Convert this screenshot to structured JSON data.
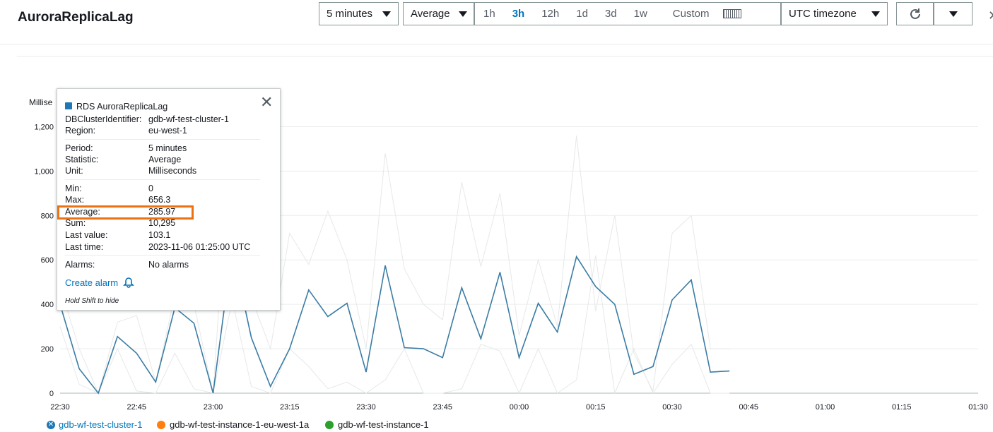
{
  "header": {
    "title": "AuroraReplicaLag",
    "period": "5 minutes",
    "statistic": "Average",
    "ranges": [
      "1h",
      "3h",
      "12h",
      "1d",
      "3d",
      "1w"
    ],
    "active_range": "3h",
    "custom_label": "Custom",
    "timezone": "UTC timezone"
  },
  "tooltip": {
    "metric": "RDS AuroraReplicaLag",
    "rows": [
      {
        "label": "DBClusterIdentifier:",
        "value": "gdb-wf-test-cluster-1"
      },
      {
        "label": "Region:",
        "value": "eu-west-1"
      },
      {
        "label": "Period:",
        "value": "5 minutes"
      },
      {
        "label": "Statistic:",
        "value": "Average"
      },
      {
        "label": "Unit:",
        "value": "Milliseconds"
      },
      {
        "label": "Min:",
        "value": "0"
      },
      {
        "label": "Max:",
        "value": "656.3"
      },
      {
        "label": "Average:",
        "value": "285.97"
      },
      {
        "label": "Sum:",
        "value": "10,295"
      },
      {
        "label": "Last value:",
        "value": "103.1"
      },
      {
        "label": "Last time:",
        "value": "2023-11-06 01:25:00 UTC"
      },
      {
        "label": "Alarms:",
        "value": "No alarms"
      }
    ],
    "create_alarm": "Create alarm",
    "hint": "Hold Shift to hide"
  },
  "chart_data": {
    "type": "line",
    "ylabel": "Millise",
    "ylim": [
      0,
      1300
    ],
    "yticks": [
      "0",
      "200",
      "400",
      "600",
      "800",
      "1,000",
      "1,200"
    ],
    "xticks": [
      "22:30",
      "22:45",
      "23:00",
      "23:15",
      "23:30",
      "23:45",
      "00:00",
      "00:15",
      "00:30",
      "00:45",
      "01:00",
      "01:15",
      "01:30"
    ],
    "x_start_minutes": 0,
    "x_step_minutes": 2.5,
    "series": [
      {
        "name": "gdb-wf-test-cluster-1",
        "color": "#1f77b4",
        "values": [
          400,
          110,
          0,
          255,
          180,
          50,
          385,
          315,
          0,
          650,
          250,
          30,
          200,
          465,
          345,
          405,
          95,
          575,
          205,
          200,
          160,
          475,
          245,
          545,
          160,
          405,
          275,
          615,
          480,
          400,
          85,
          120,
          420,
          510,
          95,
          100
        ]
      },
      {
        "name": "gdb-wf-test-instance-1-eu-west-1a",
        "color": "#ff7f0e",
        "values": [
          480,
          200,
          0,
          320,
          350,
          50,
          440,
          400,
          0,
          1300,
          430,
          200,
          720,
          580,
          820,
          600,
          200,
          1080,
          560,
          400,
          330,
          950,
          570,
          900,
          260,
          600,
          300,
          1160,
          370,
          800,
          180,
          10,
          720,
          800,
          200,
          200
        ]
      },
      {
        "name": "gdb-wf-test-instance-1",
        "color": "#2ca02c",
        "values": [
          300,
          40,
          0,
          200,
          10,
          0,
          180,
          20,
          0,
          420,
          30,
          0,
          200,
          120,
          20,
          50,
          0,
          60,
          200,
          0,
          0,
          20,
          220,
          190,
          0,
          200,
          0,
          60,
          620,
          0,
          200,
          0,
          130,
          220,
          0,
          0
        ]
      }
    ]
  },
  "legend": [
    {
      "name": "gdb-wf-test-cluster-1",
      "color": "#1f77b4",
      "selected": true
    },
    {
      "name": "gdb-wf-test-instance-1-eu-west-1a",
      "color": "#ff7f0e",
      "selected": false
    },
    {
      "name": "gdb-wf-test-instance-1",
      "color": "#2ca02c",
      "selected": false
    }
  ]
}
